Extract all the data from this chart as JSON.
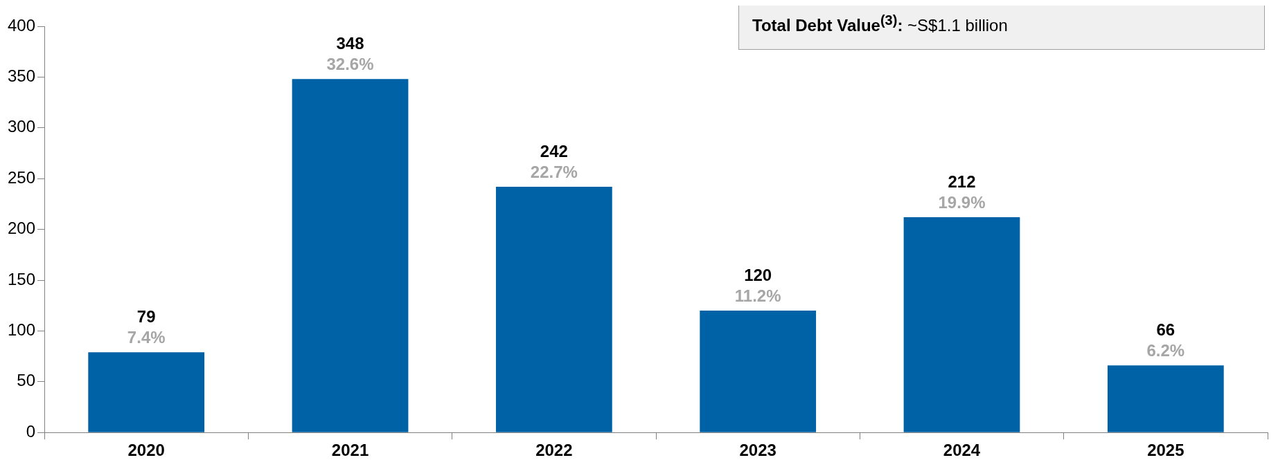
{
  "chart_data": {
    "type": "bar",
    "categories": [
      "2020",
      "2021",
      "2022",
      "2023",
      "2024",
      "2025"
    ],
    "values": [
      79,
      348,
      242,
      120,
      212,
      66
    ],
    "color": "#0062a6",
    "ylim": [
      0,
      400
    ],
    "yticks": [
      0,
      50,
      100,
      150,
      200,
      250,
      300,
      350,
      400
    ],
    "grid": false,
    "legend": false,
    "data_labels": true,
    "annotations": [
      "Total Debt Value$^{(3)}$: ~S$1.1 billion",
      {
        "text": "7.4%",
        "x": "2020",
        "y": 79
      },
      {
        "text": "32.6%",
        "x": "2021",
        "y": 348
      },
      {
        "text": "22.7%",
        "x": "2022",
        "y": 242
      },
      {
        "text": "11.2%",
        "x": "2023",
        "y": 120
      },
      {
        "text": "19.9%",
        "x": "2024",
        "y": 212
      },
      {
        "text": "6.2%",
        "x": "2025",
        "y": 66
      }
    ]
  }
}
